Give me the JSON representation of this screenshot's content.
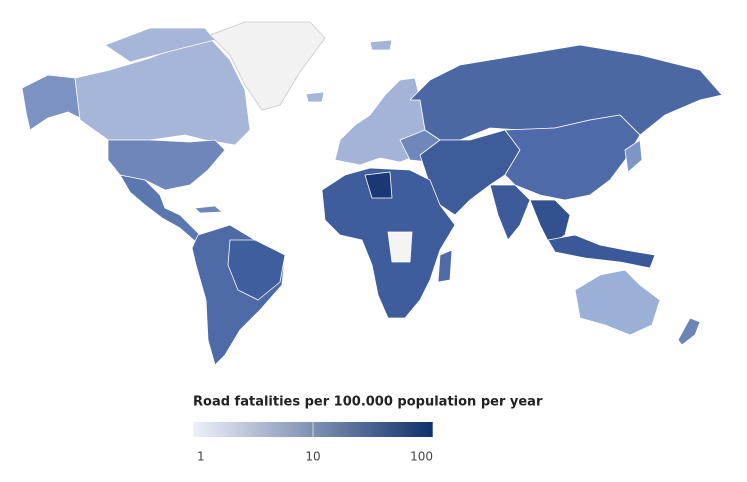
{
  "legend": {
    "title": "Road fatalities per 100.000 population per year",
    "scale": "log",
    "range": [
      1,
      100
    ],
    "ticks": [
      1,
      10,
      100
    ],
    "colors": [
      "#eef1fb",
      "#10306b"
    ]
  }
}
